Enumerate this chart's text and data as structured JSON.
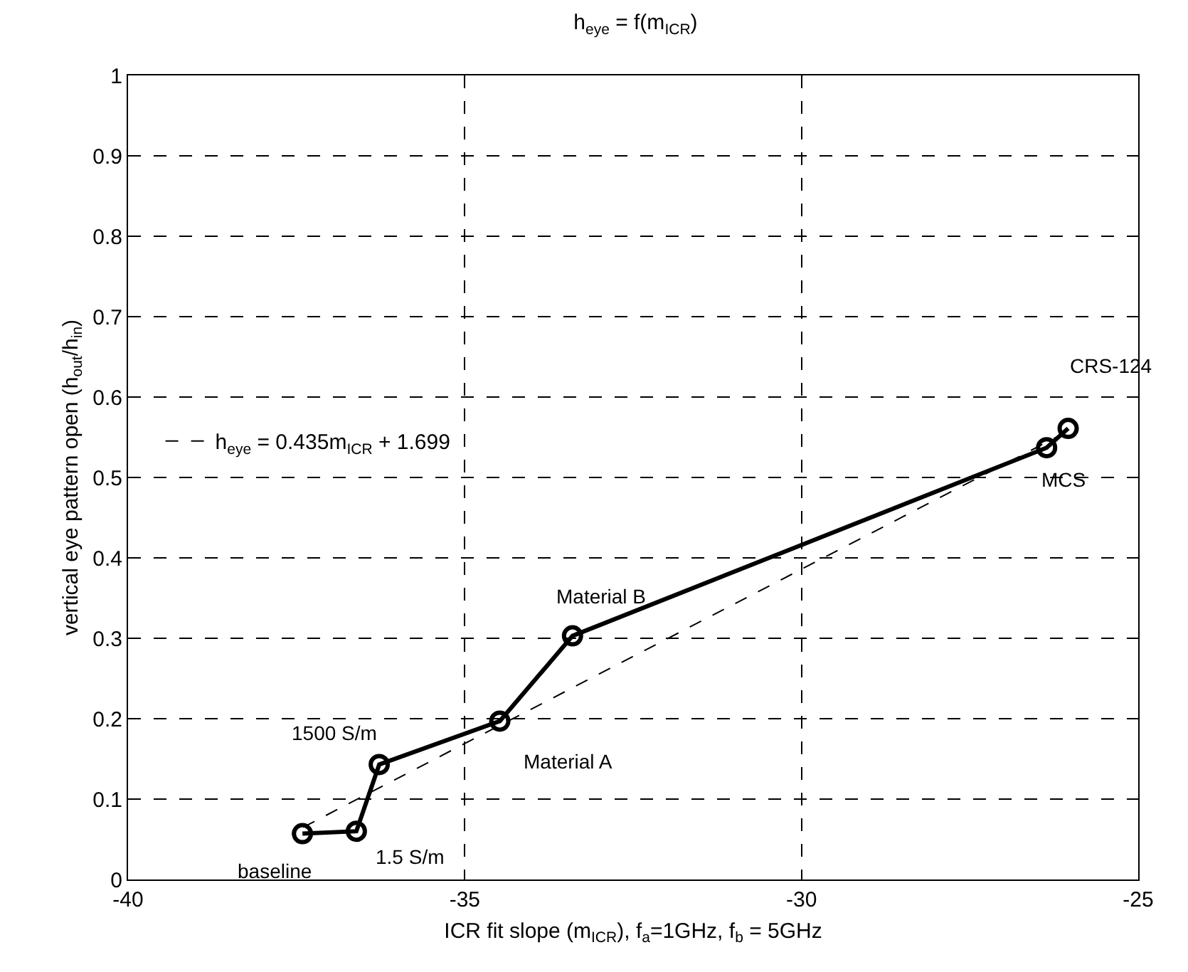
{
  "chart_data": {
    "type": "line",
    "title": "h$_{eye}$ = f(m$_{ICR}$)",
    "xlabel": "ICR fit slope (m$_{ICR}$), f$_{a}$=1GHz, f$_{b}$ = 5GHz",
    "ylabel": "vertical eye pattern open (h$_{out}$/h$_{in}$)",
    "x": [
      -37.41,
      -36.61,
      -36.27,
      -34.48,
      -33.4,
      -26.36,
      -26.04
    ],
    "series": [
      {
        "color": "#000000",
        "values": [
          0.057,
          0.06,
          0.143,
          0.197,
          0.303,
          0.537,
          0.561
        ],
        "marker": "circle",
        "line_style": "solid"
      },
      {
        "name": "h$_{eye}$ = 0.435m$_{ICR}$ + 1.699",
        "color": "#000000",
        "x": [
          -37.4,
          -26.1
        ],
        "values": [
          0.065,
          0.555
        ],
        "marker": "none",
        "line_style": "dashed"
      }
    ],
    "annotations": [
      {
        "text": "baseline",
        "x": -37.41,
        "y": 0.057
      },
      {
        "text": "1.5 S/m",
        "x": -36.61,
        "y": 0.06
      },
      {
        "text": "1500 S/m",
        "x": -36.27,
        "y": 0.143
      },
      {
        "text": "Material A",
        "x": -34.48,
        "y": 0.197
      },
      {
        "text": "Material B",
        "x": -33.4,
        "y": 0.303
      },
      {
        "text": "MCS",
        "x": -26.36,
        "y": 0.537
      },
      {
        "text": "CRS-124",
        "x": -26.04,
        "y": 0.561
      }
    ],
    "xlim": [
      -40,
      -25
    ],
    "xticks": [
      -40,
      -35,
      -30,
      -25
    ],
    "ylim": [
      0,
      1
    ],
    "yticks": [
      0,
      0.1,
      0.2,
      0.3,
      0.4,
      0.5,
      0.6,
      0.7,
      0.8,
      0.9,
      1
    ],
    "grid": true,
    "legend": "left"
  }
}
